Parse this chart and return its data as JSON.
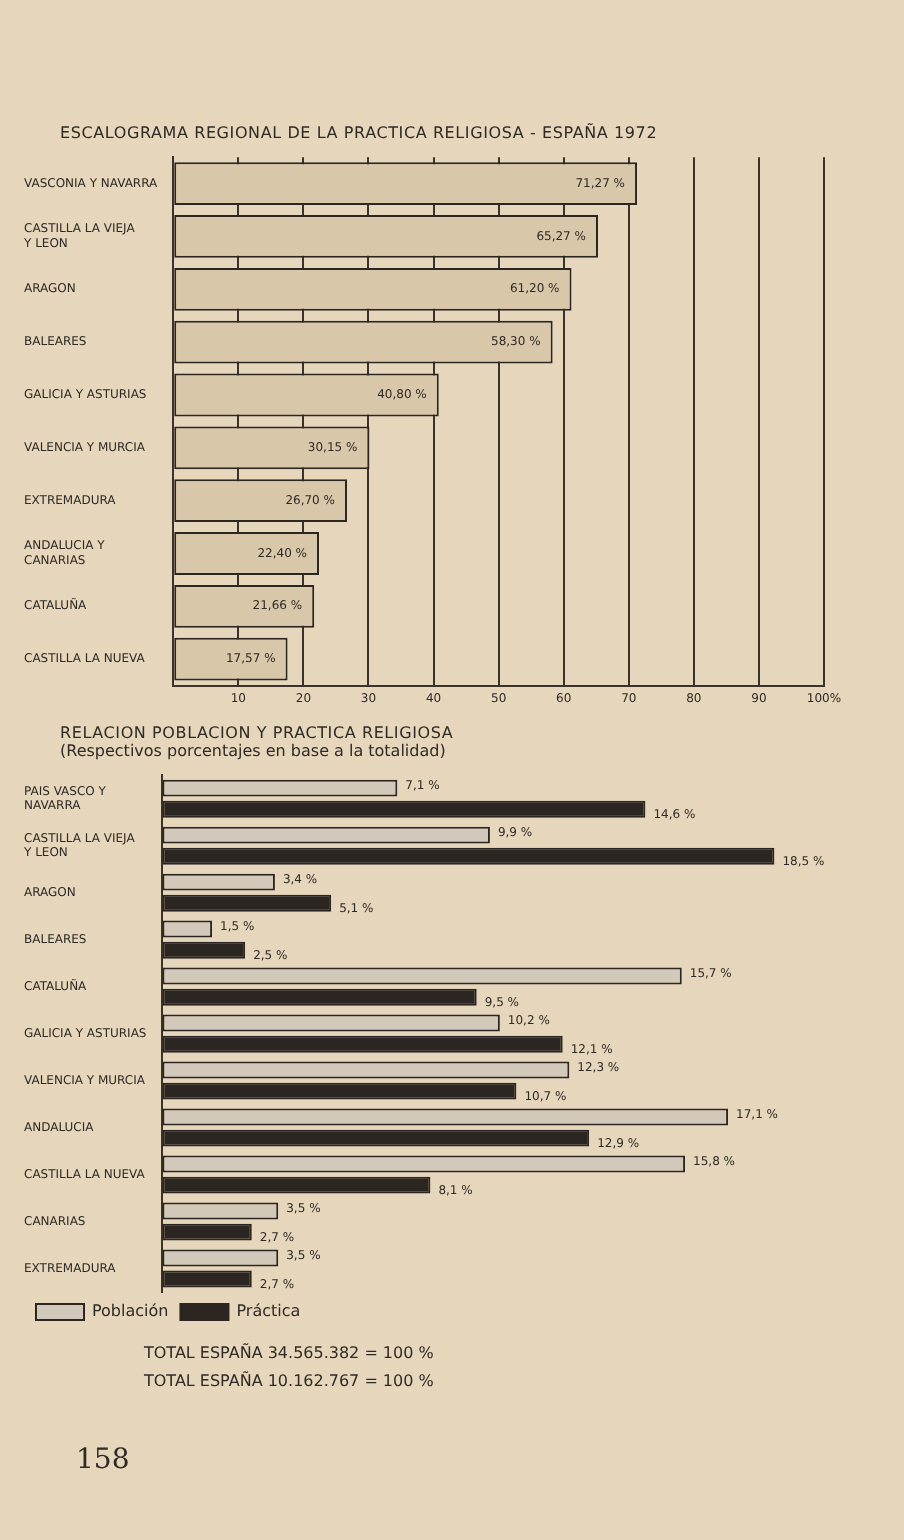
{
  "chart_data": [
    {
      "type": "bar",
      "orientation": "horizontal",
      "title": "ESCALOGRAMA REGIONAL DE LA PRACTICA RELIGIOSA - ESPAÑA 1972",
      "categories": [
        "VASCONIA Y NAVARRA",
        "CASTILLA LA VIEJA Y LEON",
        "ARAGON",
        "BALEARES",
        "GALICIA Y ASTURIAS",
        "VALENCIA Y MURCIA",
        "EXTREMADURA",
        "ANDALUCIA Y CANARIAS",
        "CATALUÑA",
        "CASTILLA LA NUEVA"
      ],
      "values": [
        71.27,
        65.27,
        61.2,
        58.3,
        40.8,
        30.15,
        26.7,
        22.4,
        21.66,
        17.57
      ],
      "value_labels": [
        "71,27 %",
        "65,27 %",
        "61,20 %",
        "58,30 %",
        "40,80 %",
        "30,15 %",
        "26,70 %",
        "22,40 %",
        "21,66 %",
        "17,57 %"
      ],
      "color": "#d9c7aa",
      "xlim": [
        0,
        100
      ],
      "xticks": [
        {
          "value": 0,
          "label": null
        },
        10,
        20,
        30,
        40,
        50,
        60,
        70,
        80,
        90,
        {
          "value": 100,
          "label": "100%"
        }
      ],
      "grid": "x",
      "legend": false
    },
    {
      "type": "bar",
      "orientation": "horizontal",
      "title": "RELACION POBLACION Y PRACTICA RELIGIOSA",
      "subtitle": "(Respectivos porcentajes en base a la totalidad)",
      "categories": [
        "PAIS VASCO Y NAVARRA",
        "CASTILLA LA VIEJA Y LEON",
        "ARAGON",
        "BALEARES",
        "CATALUÑA",
        "GALICIA Y ASTURIAS",
        "VALENCIA Y MURCIA",
        "ANDALUCIA",
        "CASTILLA LA NUEVA",
        "CANARIAS",
        "EXTREMADURA"
      ],
      "series": [
        {
          "name": "Población",
          "color": "#d3c9bb",
          "values": [
            7.1,
            9.9,
            3.4,
            1.5,
            15.7,
            10.2,
            12.3,
            17.1,
            15.8,
            3.5,
            3.5
          ],
          "value_labels": [
            "7,1 %",
            "9,9 %",
            "3,4 %",
            "1,5 %",
            "15,7 %",
            "10,2 %",
            "12,3 %",
            "17,1 %",
            "15,8 %",
            "3,5 %",
            "3,5 %"
          ]
        },
        {
          "name": "Práctica",
          "color": "#2b2622",
          "values": [
            14.6,
            18.5,
            5.1,
            2.5,
            9.5,
            12.1,
            10.7,
            12.9,
            8.1,
            2.7,
            2.7
          ],
          "value_labels": [
            "14,6 %",
            "18,5 %",
            "5,1 %",
            "2,5 %",
            "9,5 %",
            "12,1 %",
            "10,7 %",
            "12,9 %",
            "8,1 %",
            "2,7 %",
            "2,7 %"
          ]
        }
      ],
      "tick_labels": "y",
      "legend": "bottom left",
      "annotations": [
        "TOTAL ESPAÑA 34.565.382 = 100 %",
        "TOTAL ESPAÑA 10.162.767 = 100 %",
        "158"
      ]
    }
  ]
}
